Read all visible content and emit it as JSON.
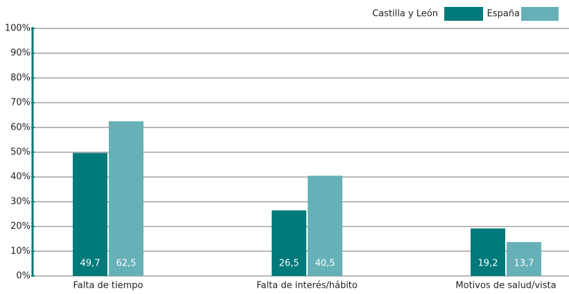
{
  "chart_data": {
    "type": "bar",
    "categories": [
      "Falta de tiempo",
      "Falta de interés/hábito",
      "Motivos de salud/vista"
    ],
    "series": [
      {
        "name": "Castilla y León",
        "color": "#007a7a",
        "values": [
          49.7,
          26.5,
          19.2
        ],
        "value_labels": [
          "49,7",
          "26,5",
          "19,2"
        ]
      },
      {
        "name": "España",
        "color": "#66b0b8",
        "values": [
          62.5,
          40.5,
          13.7
        ],
        "value_labels": [
          "62,5",
          "40,5",
          "13,7"
        ]
      }
    ],
    "ylim": [
      0,
      100
    ],
    "yticks": [
      {
        "value": 0,
        "label": "0%"
      },
      {
        "value": 10,
        "label": "10%"
      },
      {
        "value": 20,
        "label": "20%"
      },
      {
        "value": 30,
        "label": "30%"
      },
      {
        "value": 40,
        "label": "40%"
      },
      {
        "value": 50,
        "label": "50%"
      },
      {
        "value": 60,
        "label": "60%"
      },
      {
        "value": 70,
        "label": "70%"
      },
      {
        "value": 80,
        "label": "80%"
      },
      {
        "value": 90,
        "label": "90%"
      },
      {
        "value": 100,
        "label": "100%"
      }
    ],
    "grid": true,
    "legend": "top-right"
  }
}
